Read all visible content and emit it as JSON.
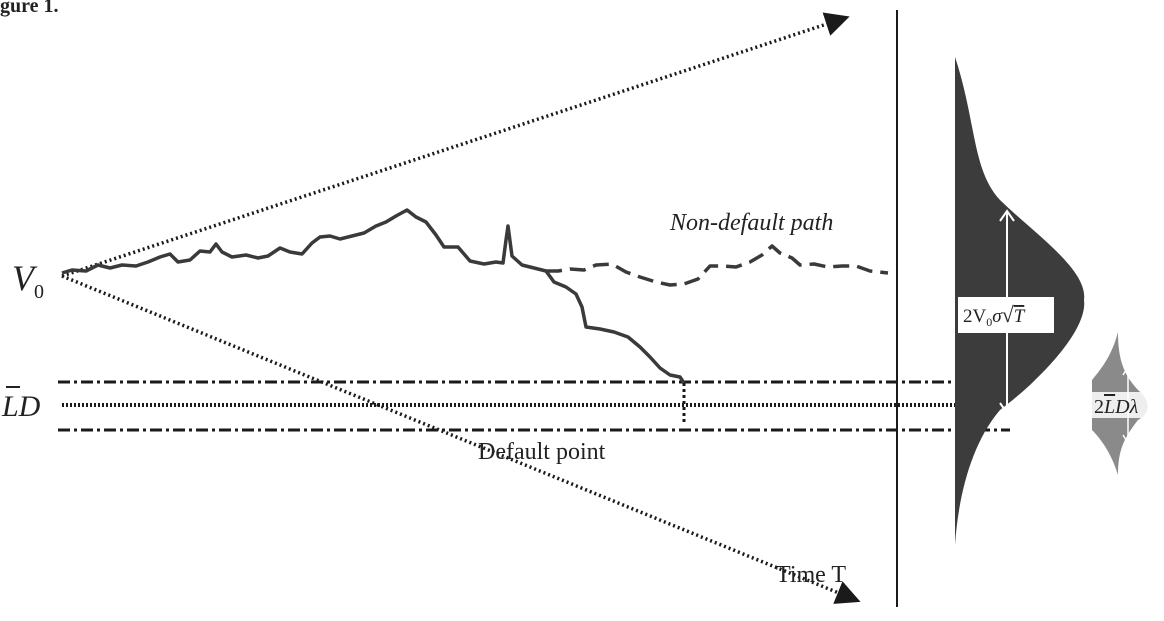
{
  "figure_caption_partial": "gure 1.",
  "labels": {
    "start_value": "V",
    "start_value_sub": "0",
    "non_default_path": "Non-default path",
    "barrier_main": "LD",
    "barrier_bar": "L",
    "default_point": "Default point",
    "time_axis": "Time T",
    "asset_spread": {
      "prefix": "2V",
      "sub": "0",
      "sigma": "σ",
      "sqrt": "√",
      "t": "T"
    },
    "barrier_spread": {
      "prefix": "2",
      "bar": "L",
      "rest": "Dλ"
    }
  },
  "colors": {
    "line": "#1a1a1a",
    "path": "#3a3a3a",
    "asset_distribution": "#3c3c3c",
    "barrier_distribution": "#8a8a8a",
    "label": "#222222"
  }
}
